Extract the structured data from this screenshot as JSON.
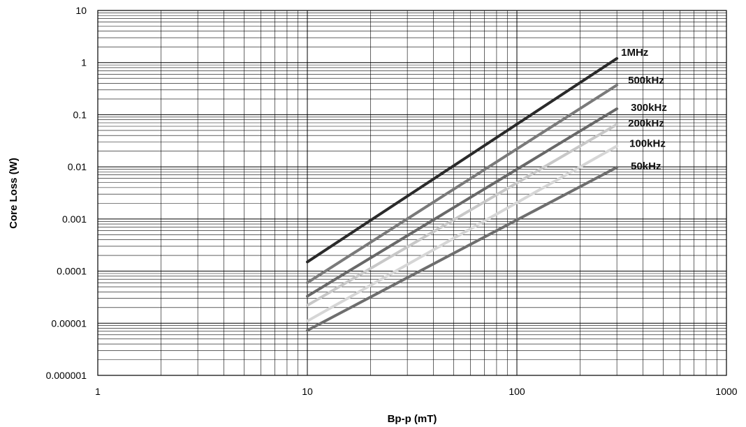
{
  "chart_data": {
    "type": "line",
    "xlabel": "Bp-p (mT)",
    "ylabel": "Core Loss (W)",
    "x_scale": "log",
    "y_scale": "log",
    "xlim": [
      1,
      1000
    ],
    "ylim": [
      1e-06,
      10
    ],
    "grid": true,
    "x_ticks": [
      "1",
      "10",
      "100",
      "1000"
    ],
    "y_ticks": [
      "10",
      "1",
      "0.1",
      "0.01",
      "0.001",
      "0.0001",
      "0.00001",
      "0.000001"
    ],
    "series": [
      {
        "name": "1MHz",
        "color": "#2a2a2a",
        "x": [
          10,
          300
        ],
        "y": [
          0.00015,
          1.2
        ]
      },
      {
        "name": "500kHz",
        "color": "#7a7a7a",
        "x": [
          10,
          300
        ],
        "y": [
          6e-05,
          0.37
        ]
      },
      {
        "name": "300kHz",
        "color": "#686868",
        "x": [
          10,
          300
        ],
        "y": [
          3.3e-05,
          0.13
        ]
      },
      {
        "name": "200kHz",
        "color": "#c8c8c8",
        "x": [
          10,
          300
        ],
        "y": [
          2.2e-05,
          0.065
        ]
      },
      {
        "name": "100kHz",
        "color": "#d6d6d6",
        "x": [
          10,
          300
        ],
        "y": [
          1.1e-05,
          0.025
        ]
      },
      {
        "name": "50kHz",
        "color": "#6e6e6e",
        "x": [
          10,
          300
        ],
        "y": [
          7.3e-06,
          0.0098
        ]
      }
    ]
  }
}
